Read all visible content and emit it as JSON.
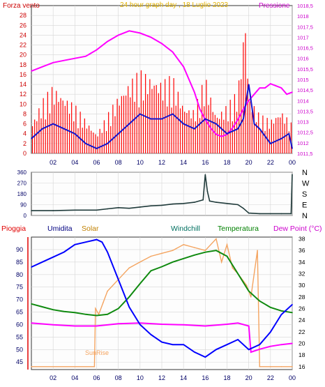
{
  "chart_data": [
    {
      "type": "line",
      "title": "24 hour graph day , 18 Luglio 2023",
      "x_ticks": [
        "02",
        "04",
        "06",
        "08",
        "10",
        "12",
        "14",
        "16",
        "18",
        "20",
        "22",
        "00"
      ],
      "left_axis": {
        "label": "Forza vento",
        "ylim": [
          0,
          30
        ],
        "ticks": [
          0,
          2,
          4,
          6,
          8,
          10,
          12,
          14,
          16,
          18,
          20,
          22,
          24,
          26,
          28
        ]
      },
      "right_axis": {
        "label": "Pressione",
        "ylim": [
          1011.5,
          1018.5
        ],
        "ticks": [
          "1011,5",
          "1012",
          "1012,5",
          "1013",
          "1013,5",
          "1014",
          "1014,5",
          "1015",
          "1015,5",
          "1016",
          "1016,5",
          "1017",
          "1017,5",
          "1018",
          "1018,5"
        ]
      },
      "series": [
        {
          "name": "Pressione",
          "color": "#ff00ff",
          "axis": "right",
          "x": [
            0,
            1,
            2,
            3,
            4,
            5,
            6,
            7,
            8,
            9,
            10,
            11,
            12,
            13,
            14,
            15,
            15.5,
            16,
            16.5,
            17,
            17.5,
            18,
            18.5,
            19,
            19.5,
            20,
            20.5,
            21,
            21.5,
            22,
            22.5,
            23,
            23.5,
            24
          ],
          "y": [
            1015.4,
            1015.6,
            1015.8,
            1015.9,
            1016.0,
            1016.1,
            1016.4,
            1016.8,
            1017.1,
            1017.3,
            1017.2,
            1017.0,
            1016.7,
            1016.3,
            1015.6,
            1014.4,
            1013.6,
            1013.1,
            1012.7,
            1012.4,
            1012.3,
            1012.4,
            1012.7,
            1013.1,
            1013.6,
            1014.0,
            1014.3,
            1014.6,
            1014.6,
            1014.8,
            1014.7,
            1014.6,
            1014.3,
            1014.4
          ]
        },
        {
          "name": "",
          "color": "#1414cc",
          "axis": "left",
          "x": [
            0,
            1,
            2,
            3,
            4,
            5,
            6,
            7,
            8,
            9,
            10,
            11,
            12,
            13,
            14,
            15,
            16,
            17,
            18,
            19,
            19.5,
            20,
            20.5,
            21,
            22,
            23,
            23.7,
            24
          ],
          "y": [
            3,
            5,
            6,
            5,
            4,
            2,
            1,
            2,
            4,
            6,
            8,
            7,
            7,
            8,
            6,
            5,
            7,
            6,
            4,
            5,
            7,
            14,
            6,
            5,
            2,
            3,
            4,
            1
          ]
        }
      ],
      "wind_gusts": {
        "color": "#ff0000",
        "x": [
          0,
          1,
          2,
          3,
          4,
          5,
          6,
          7,
          8,
          9,
          10,
          11,
          12,
          13,
          14,
          15,
          16,
          17,
          18,
          19,
          19.7,
          20,
          21,
          22,
          23,
          24
        ],
        "y": [
          6,
          11,
          14,
          12,
          10,
          7,
          4,
          8,
          12,
          15,
          17,
          16,
          15,
          16,
          10,
          9,
          16,
          8,
          10,
          13,
          29,
          12,
          8,
          7,
          9,
          6
        ]
      }
    },
    {
      "type": "line",
      "title": "",
      "x_ticks": [
        "02",
        "04",
        "06",
        "08",
        "10",
        "12",
        "14",
        "16",
        "18",
        "20",
        "22",
        "00"
      ],
      "left_axis": {
        "ylim": [
          0,
          360
        ],
        "ticks": [
          0,
          90,
          180,
          270,
          360
        ]
      },
      "right_labels": [
        "N",
        "W",
        "S",
        "E",
        "N"
      ],
      "series": [
        {
          "name": "",
          "color": "#1f3a3a",
          "x": [
            0,
            2,
            4,
            6,
            7,
            8,
            9,
            10,
            11,
            12,
            13,
            14,
            15,
            15.8,
            16,
            16.2,
            16.4,
            17,
            18,
            19,
            19.5,
            20,
            21,
            22,
            23,
            23.9,
            24
          ],
          "y": [
            40,
            40,
            45,
            45,
            55,
            65,
            60,
            70,
            80,
            85,
            95,
            100,
            110,
            130,
            340,
            200,
            120,
            110,
            100,
            90,
            60,
            20,
            15,
            15,
            15,
            15,
            340
          ]
        }
      ]
    },
    {
      "type": "line",
      "title": "",
      "x_ticks": [
        "02",
        "04",
        "06",
        "08",
        "10",
        "12",
        "14",
        "16",
        "18",
        "20",
        "22",
        "00"
      ],
      "legend": [
        "Pioggia",
        "Umidita",
        "Solar",
        "Windchill",
        "Temperatura",
        "Dew Point (°C)"
      ],
      "left_axis": {
        "ylim": [
          42,
          95
        ],
        "ticks": [
          45,
          50,
          55,
          60,
          65,
          70,
          75,
          80,
          85,
          90
        ]
      },
      "right_axis": {
        "ylim": [
          15.5,
          38.3
        ],
        "ticks": [
          16,
          18,
          20,
          22,
          24,
          26,
          28,
          30,
          32,
          34,
          36,
          38
        ]
      },
      "annotation": "SunRise",
      "series": [
        {
          "name": "Umidita",
          "color": "#0000ff",
          "axis": "left",
          "x": [
            0,
            1,
            2,
            3,
            4,
            5,
            6,
            6.5,
            7,
            8,
            9,
            10,
            11,
            12,
            13,
            14,
            15,
            16,
            17,
            18,
            19,
            20,
            21,
            22,
            23,
            24
          ],
          "y": [
            83,
            85,
            87,
            89,
            92,
            93,
            94,
            93,
            89,
            78,
            67,
            60,
            56,
            53,
            52,
            52,
            49,
            47,
            50,
            52,
            54,
            50,
            52,
            57,
            64,
            68
          ]
        },
        {
          "name": "Temperatura",
          "color": "#0f8a0f",
          "axis": "right",
          "x": [
            0,
            1,
            2,
            3,
            4,
            5,
            6,
            7,
            8,
            9,
            10,
            11,
            12,
            13,
            14,
            15,
            16,
            17,
            18,
            19,
            20,
            21,
            22,
            23,
            24
          ],
          "y": [
            26.8,
            26.3,
            25.8,
            25.5,
            25.3,
            25.0,
            24.8,
            25.0,
            26.0,
            28.0,
            30.3,
            32.5,
            33.2,
            34.0,
            34.6,
            35.2,
            35.7,
            36.0,
            35.0,
            32.0,
            29.0,
            27.3,
            26.2,
            25.6,
            25.3
          ]
        },
        {
          "name": "Dew Point (°C)",
          "color": "#ff00ff",
          "axis": "right",
          "x": [
            0,
            2,
            4,
            6,
            8,
            10,
            12,
            14,
            16,
            18,
            19,
            20,
            20.2,
            21,
            22,
            23,
            24
          ],
          "y": [
            23.5,
            23.2,
            23.0,
            23.0,
            23.4,
            23.5,
            23.3,
            23.2,
            23.0,
            23.3,
            23.5,
            23.0,
            18.5,
            19.0,
            19.5,
            19.8,
            20.0
          ]
        },
        {
          "name": "Solar",
          "color": "#f4a460",
          "axis": "right",
          "x": [
            0,
            5.8,
            5.9,
            6.2,
            6.6,
            7,
            8,
            9,
            10,
            11,
            12,
            13,
            14,
            15,
            16,
            17,
            17.5,
            18,
            18.5,
            19,
            19.8,
            20.2,
            20.8,
            21,
            22,
            23,
            24
          ],
          "y": [
            16,
            16,
            26,
            25,
            27,
            29,
            31,
            33,
            34,
            35,
            35.5,
            36,
            37,
            36.5,
            36,
            38,
            34,
            37,
            33,
            32,
            30,
            28,
            36,
            16,
            16,
            16,
            16
          ]
        }
      ]
    }
  ]
}
